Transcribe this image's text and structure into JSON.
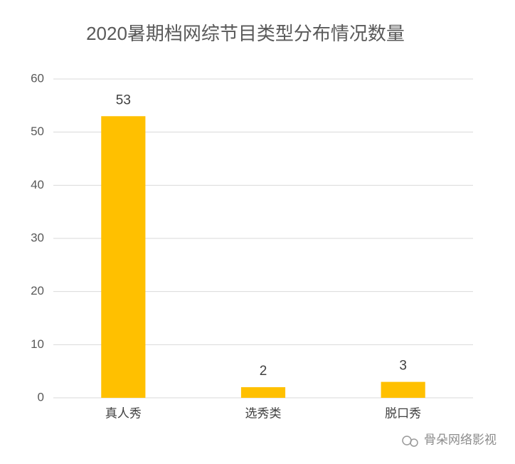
{
  "chart_data": {
    "type": "bar",
    "title": "2020暑期档网综节目类型分布情况数量",
    "categories": [
      "真人秀",
      "选秀类",
      "脱口秀"
    ],
    "values": [
      53,
      2,
      3
    ],
    "color": "#ffc000",
    "ylim": [
      0,
      60
    ],
    "yticks": [
      0,
      10,
      20,
      30,
      40,
      50,
      60
    ],
    "grid": true
  },
  "watermark": "骨朵网络影视"
}
